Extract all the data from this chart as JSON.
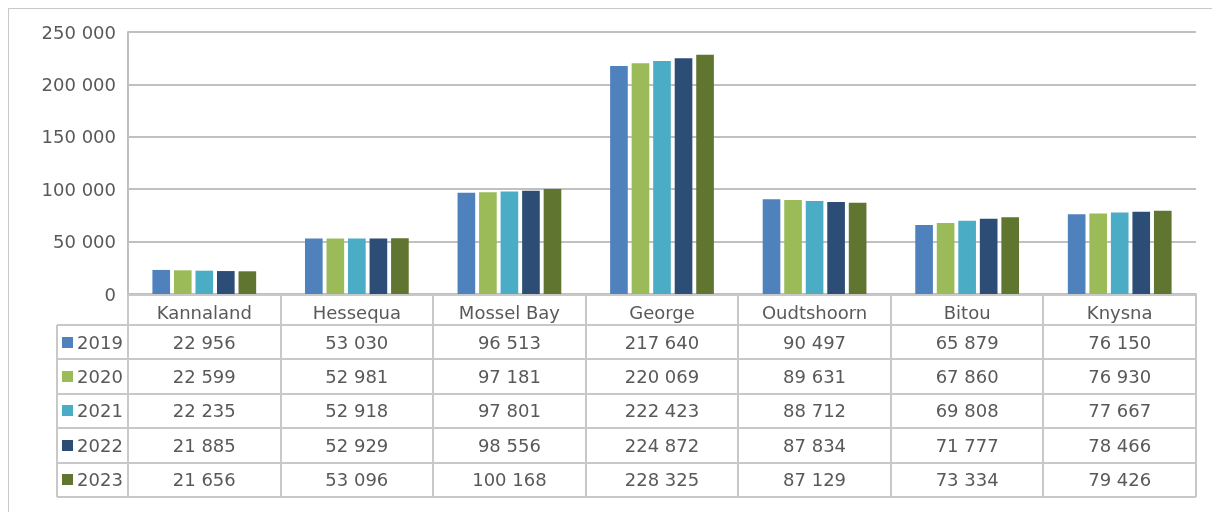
{
  "chart_data": {
    "type": "bar",
    "categories": [
      "Kannaland",
      "Hessequa",
      "Mossel Bay",
      "George",
      "Oudtshoorn",
      "Bitou",
      "Knysna"
    ],
    "series": [
      {
        "name": "2019",
        "color": "#4f81bd",
        "values": [
          22956,
          53030,
          96513,
          217640,
          90497,
          65879,
          76150
        ]
      },
      {
        "name": "2020",
        "color": "#9bbb59",
        "values": [
          22599,
          52981,
          97181,
          220069,
          89631,
          67860,
          76930
        ]
      },
      {
        "name": "2021",
        "color": "#4bacc6",
        "values": [
          22235,
          52918,
          97801,
          222423,
          88712,
          69808,
          77667
        ]
      },
      {
        "name": "2022",
        "color": "#2c4d75",
        "values": [
          21885,
          52929,
          98556,
          224872,
          87834,
          71777,
          78466
        ]
      },
      {
        "name": "2023",
        "color": "#5f7530",
        "values": [
          21656,
          53096,
          100168,
          228325,
          87129,
          73334,
          79426
        ]
      }
    ],
    "ylim": [
      0,
      250000
    ],
    "yticks": [
      {
        "value": 0,
        "label": "0"
      },
      {
        "value": 50000,
        "label": "50 000"
      },
      {
        "value": 100000,
        "label": "100 000"
      },
      {
        "value": 150000,
        "label": "150 000"
      },
      {
        "value": 200000,
        "label": "200 000"
      },
      {
        "value": 250000,
        "label": "250 000"
      }
    ],
    "grid": "y",
    "legend": "bottom",
    "data_labels": true
  }
}
